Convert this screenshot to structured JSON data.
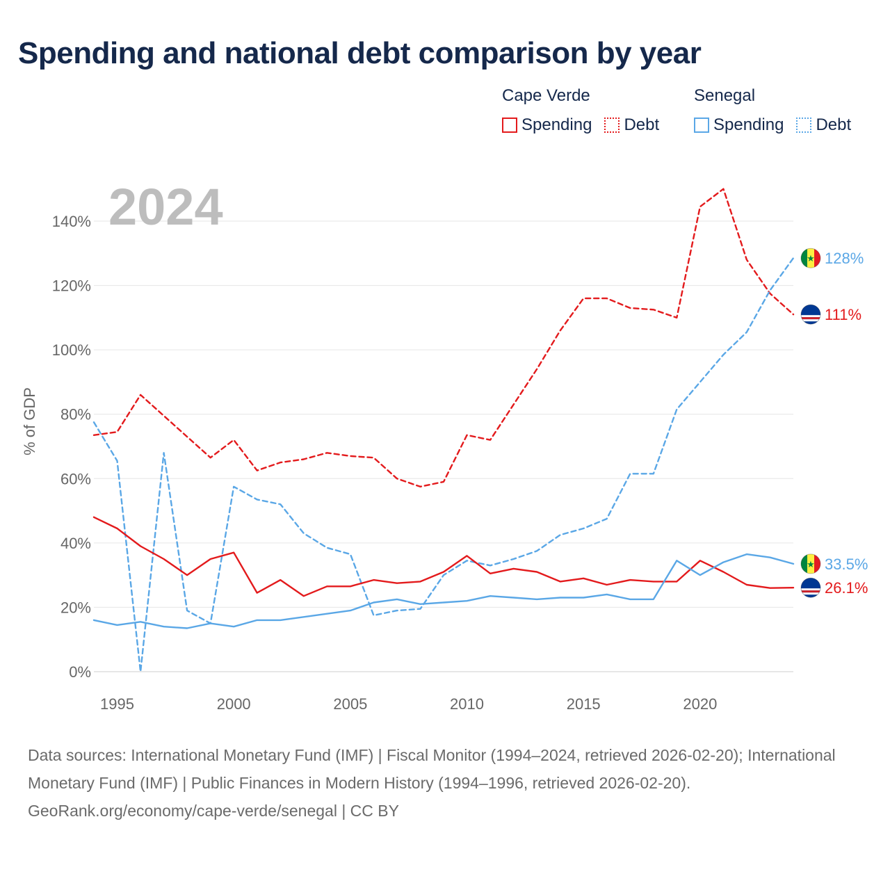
{
  "title": "Spending and national debt comparison by year",
  "legend": {
    "groups": [
      {
        "country": "Cape Verde",
        "color": "#e31a1c",
        "items": [
          {
            "label": "Spending",
            "style": "solid"
          },
          {
            "label": "Debt",
            "style": "dotted"
          }
        ]
      },
      {
        "country": "Senegal",
        "color": "#5aa7e6",
        "items": [
          {
            "label": "Spending",
            "style": "solid"
          },
          {
            "label": "Debt",
            "style": "dotted"
          }
        ]
      }
    ]
  },
  "chart_data": {
    "type": "line",
    "watermark_year": "2024",
    "ylabel": "% of GDP",
    "xlim": [
      1994,
      2024
    ],
    "ylim": [
      0,
      150
    ],
    "y_ticks": [
      0,
      20,
      40,
      60,
      80,
      100,
      120,
      140
    ],
    "y_tick_labels": [
      "0%",
      "20%",
      "40%",
      "60%",
      "80%",
      "100%",
      "120%",
      "140%"
    ],
    "x_ticks": [
      1995,
      2000,
      2005,
      2010,
      2015,
      2020
    ],
    "x_tick_labels": [
      "1995",
      "2000",
      "2005",
      "2010",
      "2015",
      "2020"
    ],
    "years": [
      1994,
      1995,
      1996,
      1997,
      1998,
      1999,
      2000,
      2001,
      2002,
      2003,
      2004,
      2005,
      2006,
      2007,
      2008,
      2009,
      2010,
      2011,
      2012,
      2013,
      2014,
      2015,
      2016,
      2017,
      2018,
      2019,
      2020,
      2021,
      2022,
      2023,
      2024
    ],
    "series": [
      {
        "name": "Cape Verde Debt",
        "country": "Cape Verde",
        "kind": "Debt",
        "color": "#e31a1c",
        "dash": true,
        "end_label": "111%",
        "flag": "cape-verde",
        "values": [
          73.5,
          74.5,
          86,
          79.5,
          73,
          66.5,
          72,
          62.5,
          65,
          66,
          68,
          67,
          66.5,
          60,
          57.5,
          59,
          73.5,
          72,
          83,
          94,
          106,
          116,
          116,
          113,
          112.5,
          110,
          144.5,
          150,
          128,
          117.5,
          111
        ]
      },
      {
        "name": "Senegal Debt",
        "country": "Senegal",
        "kind": "Debt",
        "color": "#5aa7e6",
        "dash": true,
        "end_label": "128%",
        "flag": "senegal",
        "values": [
          77.5,
          65.5,
          0,
          68,
          19,
          15,
          57.5,
          53.5,
          52,
          43,
          38.5,
          36.5,
          17.5,
          19,
          19.5,
          30,
          34.5,
          33,
          35,
          37.5,
          42.5,
          44.5,
          47.5,
          61.5,
          61.5,
          81.5,
          90,
          98.5,
          105.5,
          118.5,
          128.5
        ]
      },
      {
        "name": "Cape Verde Spending",
        "country": "Cape Verde",
        "kind": "Spending",
        "color": "#e31a1c",
        "dash": false,
        "end_label": "26.1%",
        "flag": "cape-verde",
        "values": [
          48,
          44.5,
          39,
          35,
          30,
          35,
          37,
          24.5,
          28.5,
          23.5,
          26.5,
          26.5,
          28.5,
          27.5,
          28,
          31,
          36,
          30.5,
          32,
          31,
          28,
          29,
          27,
          28.5,
          28,
          28,
          34.5,
          31,
          27,
          26,
          26.1
        ]
      },
      {
        "name": "Senegal Spending",
        "country": "Senegal",
        "kind": "Spending",
        "color": "#5aa7e6",
        "dash": false,
        "end_label": "33.5%",
        "flag": "senegal",
        "values": [
          16,
          14.5,
          15.5,
          14,
          13.5,
          15,
          14,
          16,
          16,
          17,
          18,
          19,
          21.5,
          22.5,
          21,
          21.5,
          22,
          23.5,
          23,
          22.5,
          23,
          23,
          24,
          22.5,
          22.5,
          34.5,
          30,
          34,
          36.5,
          35.5,
          33.5
        ]
      }
    ]
  },
  "source": {
    "line1": "Data sources: International Monetary Fund (IMF) | Fiscal Monitor (1994–2024, retrieved 2026-02-20); International Monetary Fund (IMF) | Public Finances in Modern History (1994–1996, retrieved 2026-02-20).",
    "line2": "GeoRank.org/economy/cape-verde/senegal | CC BY"
  }
}
